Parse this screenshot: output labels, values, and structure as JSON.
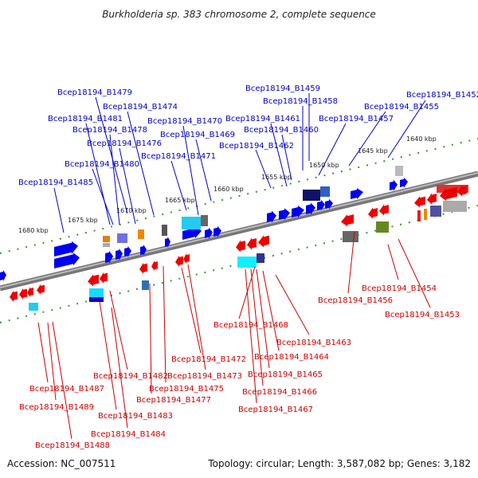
{
  "title": "Burkholderia sp. 383 chromosome 2, complete sequence",
  "footer": {
    "accession": "Accession: NC_007511",
    "summary": "Topology: circular; Length: 3,587,082 bp; Genes: 3,182"
  },
  "colors": {
    "forward_label": "#0000cc",
    "reverse_label": "#cc0000",
    "forward_gene": "#0000ee",
    "reverse_gene": "#ee0000",
    "axis": "#888888",
    "tick": "#339933"
  },
  "kbp_labels": [
    "1680 kbp",
    "1675 kbp",
    "1670 kbp",
    "1665 kbp",
    "1660 kbp",
    "1655 kbp",
    "1650 kbp",
    "1645 kbp",
    "1640 kbp"
  ],
  "forward_labels": [
    "Bcep18194_B1479",
    "Bcep18194_B1474",
    "Bcep18194_B1481",
    "Bcep18194_B1478",
    "Bcep18194_B1470",
    "Bcep18194_B1469",
    "Bcep18194_B1476",
    "Bcep18194_B1471",
    "Bcep18194_B1480",
    "Bcep18194_B1485",
    "Bcep18194_B1459",
    "Bcep18194_B1458",
    "Bcep18194_B1452",
    "Bcep18194_B1455",
    "Bcep18194_B1461",
    "Bcep18194_B1457",
    "Bcep18194_B1460",
    "Bcep18194_B1462"
  ],
  "reverse_labels": [
    "Bcep18194_B1454",
    "Bcep18194_B1456",
    "Bcep18194_B1453",
    "Bcep18194_B1468",
    "Bcep18194_B1463",
    "Bcep18194_B1464",
    "Bcep18194_B1465",
    "Bcep18194_B1466",
    "Bcep18194_B1467",
    "Bcep18194_B1472",
    "Bcep18194_B1482",
    "Bcep18194_B1473",
    "Bcep18194_B1475",
    "Bcep18194_B1477",
    "Bcep18194_B1487",
    "Bcep18194_B1489",
    "Bcep18194_B1483",
    "Bcep18194_B1484",
    "Bcep18194_B1488"
  ]
}
